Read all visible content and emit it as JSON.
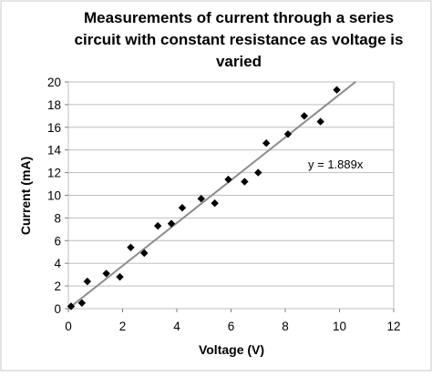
{
  "chart_data": {
    "type": "scatter",
    "title_lines": [
      "Measurements of current through a series",
      "circuit with constant resistance as voltage is",
      "varied"
    ],
    "xlabel": "Voltage (V)",
    "ylabel": "Current (mA)",
    "xlim": [
      0,
      12
    ],
    "ylim": [
      0,
      20
    ],
    "xticks": [
      0,
      2,
      4,
      6,
      8,
      10,
      12
    ],
    "yticks": [
      0,
      2,
      4,
      6,
      8,
      10,
      12,
      14,
      16,
      18,
      20
    ],
    "grid": "horizontal",
    "marker_color": "#000000",
    "trendline_color": "#8c8c8c",
    "points": [
      {
        "x": 0.1,
        "y": 0.2
      },
      {
        "x": 0.5,
        "y": 0.5
      },
      {
        "x": 0.7,
        "y": 2.4
      },
      {
        "x": 1.4,
        "y": 3.1
      },
      {
        "x": 1.9,
        "y": 2.8
      },
      {
        "x": 2.3,
        "y": 5.4
      },
      {
        "x": 2.8,
        "y": 4.9
      },
      {
        "x": 3.3,
        "y": 7.3
      },
      {
        "x": 3.8,
        "y": 7.5
      },
      {
        "x": 4.2,
        "y": 8.9
      },
      {
        "x": 4.9,
        "y": 9.7
      },
      {
        "x": 5.4,
        "y": 9.3
      },
      {
        "x": 5.9,
        "y": 11.4
      },
      {
        "x": 6.5,
        "y": 11.2
      },
      {
        "x": 7.0,
        "y": 12.0
      },
      {
        "x": 7.3,
        "y": 14.6
      },
      {
        "x": 8.1,
        "y": 15.4
      },
      {
        "x": 8.7,
        "y": 17.0
      },
      {
        "x": 9.3,
        "y": 16.5
      },
      {
        "x": 9.9,
        "y": 19.3
      }
    ],
    "trendline": {
      "slope": 1.889,
      "intercept": 0,
      "x_range": [
        0,
        10.6
      ],
      "equation_label": "y = 1.889x"
    }
  }
}
